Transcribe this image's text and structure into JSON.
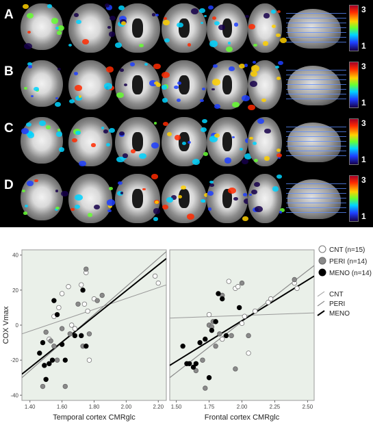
{
  "brain_panel": {
    "rows": [
      {
        "label": "A",
        "scale_max": "3",
        "scale_min": "1"
      },
      {
        "label": "B",
        "scale_max": "3",
        "scale_min": "1"
      },
      {
        "label": "C",
        "scale_max": "3",
        "scale_min": "1"
      },
      {
        "label": "D",
        "scale_max": "3",
        "scale_min": "1"
      }
    ]
  },
  "colors": {
    "CNT": "#ffffff",
    "PERI": "#8a8a8a",
    "MENO": "#000000",
    "plot_background": "#eaf0e9"
  },
  "chart_data": [
    {
      "type": "scatter",
      "xlabel": "Temporal cortex CMRglc",
      "ylabel": "COX Vmax",
      "xlim": [
        1.35,
        2.25
      ],
      "ylim": [
        -43,
        43
      ],
      "xticks": [
        "1.40",
        "1.60",
        "1.80",
        "2.00",
        "2.20"
      ],
      "yticks": [
        "40",
        "20",
        "0",
        "-20",
        "-40"
      ],
      "series": [
        {
          "name": "CNT (n=15)",
          "fit_label": "CNT",
          "points": [
            [
              1.52,
              -8
            ],
            [
              1.55,
              5
            ],
            [
              1.58,
              10
            ],
            [
              1.6,
              18
            ],
            [
              1.64,
              22
            ],
            [
              1.66,
              0
            ],
            [
              1.68,
              -2
            ],
            [
              1.72,
              23
            ],
            [
              1.74,
              12
            ],
            [
              1.75,
              30
            ],
            [
              1.76,
              8
            ],
            [
              1.77,
              -20
            ],
            [
              1.8,
              15
            ],
            [
              2.18,
              28
            ],
            [
              2.2,
              24
            ]
          ],
          "fit": [
            [
              1.35,
              -5
            ],
            [
              2.25,
              23
            ]
          ]
        },
        {
          "name": "PERI (n=14)",
          "fit_label": "PERI",
          "points": [
            [
              1.48,
              -35
            ],
            [
              1.5,
              -4
            ],
            [
              1.53,
              -9
            ],
            [
              1.55,
              -12
            ],
            [
              1.57,
              -20
            ],
            [
              1.6,
              -2
            ],
            [
              1.62,
              -35
            ],
            [
              1.65,
              -5
            ],
            [
              1.7,
              12
            ],
            [
              1.73,
              -12
            ],
            [
              1.75,
              32
            ],
            [
              1.77,
              -5
            ],
            [
              1.82,
              14
            ],
            [
              1.85,
              17
            ]
          ],
          "fit": [
            [
              1.35,
              -30
            ],
            [
              2.25,
              42
            ]
          ]
        },
        {
          "name": "MENO (n=14)",
          "fit_label": "MENO",
          "points": [
            [
              1.46,
              -16
            ],
            [
              1.48,
              -10
            ],
            [
              1.49,
              -23
            ],
            [
              1.5,
              -31
            ],
            [
              1.52,
              -22
            ],
            [
              1.54,
              -20
            ],
            [
              1.55,
              14
            ],
            [
              1.57,
              6
            ],
            [
              1.6,
              -11
            ],
            [
              1.62,
              -20
            ],
            [
              1.68,
              -6
            ],
            [
              1.72,
              -6
            ],
            [
              1.73,
              20
            ],
            [
              1.75,
              -12
            ]
          ],
          "fit": [
            [
              1.35,
              -28
            ],
            [
              2.25,
              38
            ]
          ]
        }
      ]
    },
    {
      "type": "scatter",
      "xlabel": "Frontal cortex CMRglc",
      "ylabel": "",
      "xlim": [
        1.45,
        2.55
      ],
      "ylim": [
        -43,
        43
      ],
      "xticks": [
        "1.50",
        "1.75",
        "2.00",
        "2.25",
        "2.50"
      ],
      "yticks": [],
      "series": [
        {
          "name": "CNT (n=15)",
          "fit_label": "CNT",
          "points": [
            [
              1.7,
              -20
            ],
            [
              1.75,
              6
            ],
            [
              1.8,
              2
            ],
            [
              1.85,
              -8
            ],
            [
              1.9,
              25
            ],
            [
              1.95,
              21
            ],
            [
              1.97,
              22
            ],
            [
              2.0,
              1
            ],
            [
              2.02,
              5
            ],
            [
              2.05,
              -16
            ],
            [
              2.1,
              8
            ],
            [
              2.2,
              13
            ],
            [
              2.22,
              15
            ],
            [
              2.4,
              24
            ],
            [
              2.42,
              21
            ]
          ],
          "fit": [
            [
              1.45,
              4
            ],
            [
              2.55,
              7
            ]
          ]
        },
        {
          "name": "PERI (n=14)",
          "fit_label": "PERI",
          "points": [
            [
              1.65,
              -26
            ],
            [
              1.7,
              -20
            ],
            [
              1.72,
              -36
            ],
            [
              1.75,
              0
            ],
            [
              1.77,
              -1
            ],
            [
              1.78,
              2
            ],
            [
              1.8,
              -12
            ],
            [
              1.83,
              -5
            ],
            [
              1.85,
              17
            ],
            [
              1.92,
              -6
            ],
            [
              1.95,
              -25
            ],
            [
              2.0,
              24
            ],
            [
              2.05,
              -6
            ],
            [
              2.4,
              26
            ]
          ],
          "fit": [
            [
              1.45,
              -30
            ],
            [
              2.55,
              34
            ]
          ]
        },
        {
          "name": "MENO (n=14)",
          "fit_label": "MENO",
          "points": [
            [
              1.55,
              -12
            ],
            [
              1.58,
              -22
            ],
            [
              1.6,
              -22
            ],
            [
              1.63,
              -24
            ],
            [
              1.65,
              -22
            ],
            [
              1.68,
              -10
            ],
            [
              1.72,
              -8
            ],
            [
              1.75,
              -30
            ],
            [
              1.77,
              -3
            ],
            [
              1.8,
              2
            ],
            [
              1.82,
              18
            ],
            [
              1.85,
              15
            ],
            [
              1.88,
              -6
            ],
            [
              1.98,
              10
            ]
          ],
          "fit": [
            [
              1.45,
              -23
            ],
            [
              2.55,
              28
            ]
          ]
        }
      ]
    }
  ]
}
